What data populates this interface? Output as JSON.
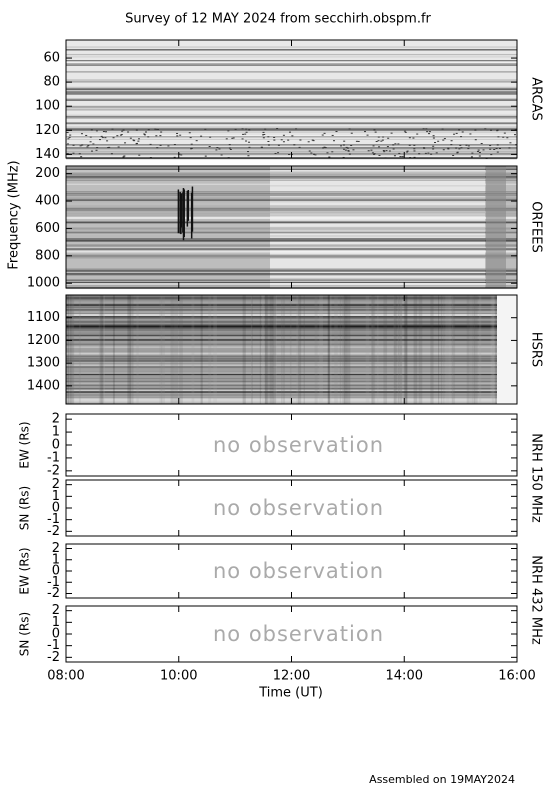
{
  "chart_data": {
    "type": "survey",
    "title": "Survey of 12 MAY 2024 from secchirh.obspm.fr",
    "ylabel": "Frequency (MHz)",
    "xlabel": "Time (UT)",
    "xlim": [
      8,
      16
    ],
    "xticks": [
      {
        "value": 8,
        "label": "08:00"
      },
      {
        "value": 10,
        "label": "10:00"
      },
      {
        "value": 12,
        "label": "12:00"
      },
      {
        "value": 14,
        "label": "14:00"
      },
      {
        "value": 16,
        "label": "16:00"
      }
    ],
    "panels": [
      {
        "type": "heatmap",
        "label": "ARCAS",
        "ylim": [
          45,
          143
        ],
        "y_inverted": true,
        "yticks": [
          60,
          80,
          100,
          120,
          140
        ]
      },
      {
        "type": "heatmap",
        "label": "ORFEES",
        "ylim": [
          144,
          1035
        ],
        "y_inverted": true,
        "yticks": [
          200,
          400,
          600,
          800,
          1000
        ]
      },
      {
        "type": "heatmap",
        "label": "HSRS",
        "ylim": [
          1000,
          1480
        ],
        "y_inverted": true,
        "yticks": [
          1100,
          1200,
          1300,
          1400
        ]
      },
      {
        "type": "line",
        "label": "NRH 150 MHz",
        "ylabel": "EW (Rs)",
        "annotation": "no observation",
        "ylim": [
          -2.4,
          2.4
        ],
        "yticks": [
          -2,
          -1,
          0,
          1,
          2
        ]
      },
      {
        "type": "line",
        "ylabel": "SN (Rs)",
        "annotation": "no observation",
        "ylim": [
          -2.4,
          2.4
        ],
        "yticks": [
          -2,
          -1,
          0,
          1,
          2
        ]
      },
      {
        "type": "line",
        "label": "NRH 432 MHz",
        "ylabel": "EW (Rs)",
        "annotation": "no observation",
        "ylim": [
          -2.4,
          2.4
        ],
        "yticks": [
          -2,
          -1,
          0,
          1,
          2
        ]
      },
      {
        "type": "line",
        "ylabel": "SN (Rs)",
        "annotation": "no observation",
        "ylim": [
          -2.4,
          2.4
        ],
        "yticks": [
          -2,
          -1,
          0,
          1,
          2
        ]
      }
    ],
    "footer": "Assembled on 19MAY2024"
  }
}
